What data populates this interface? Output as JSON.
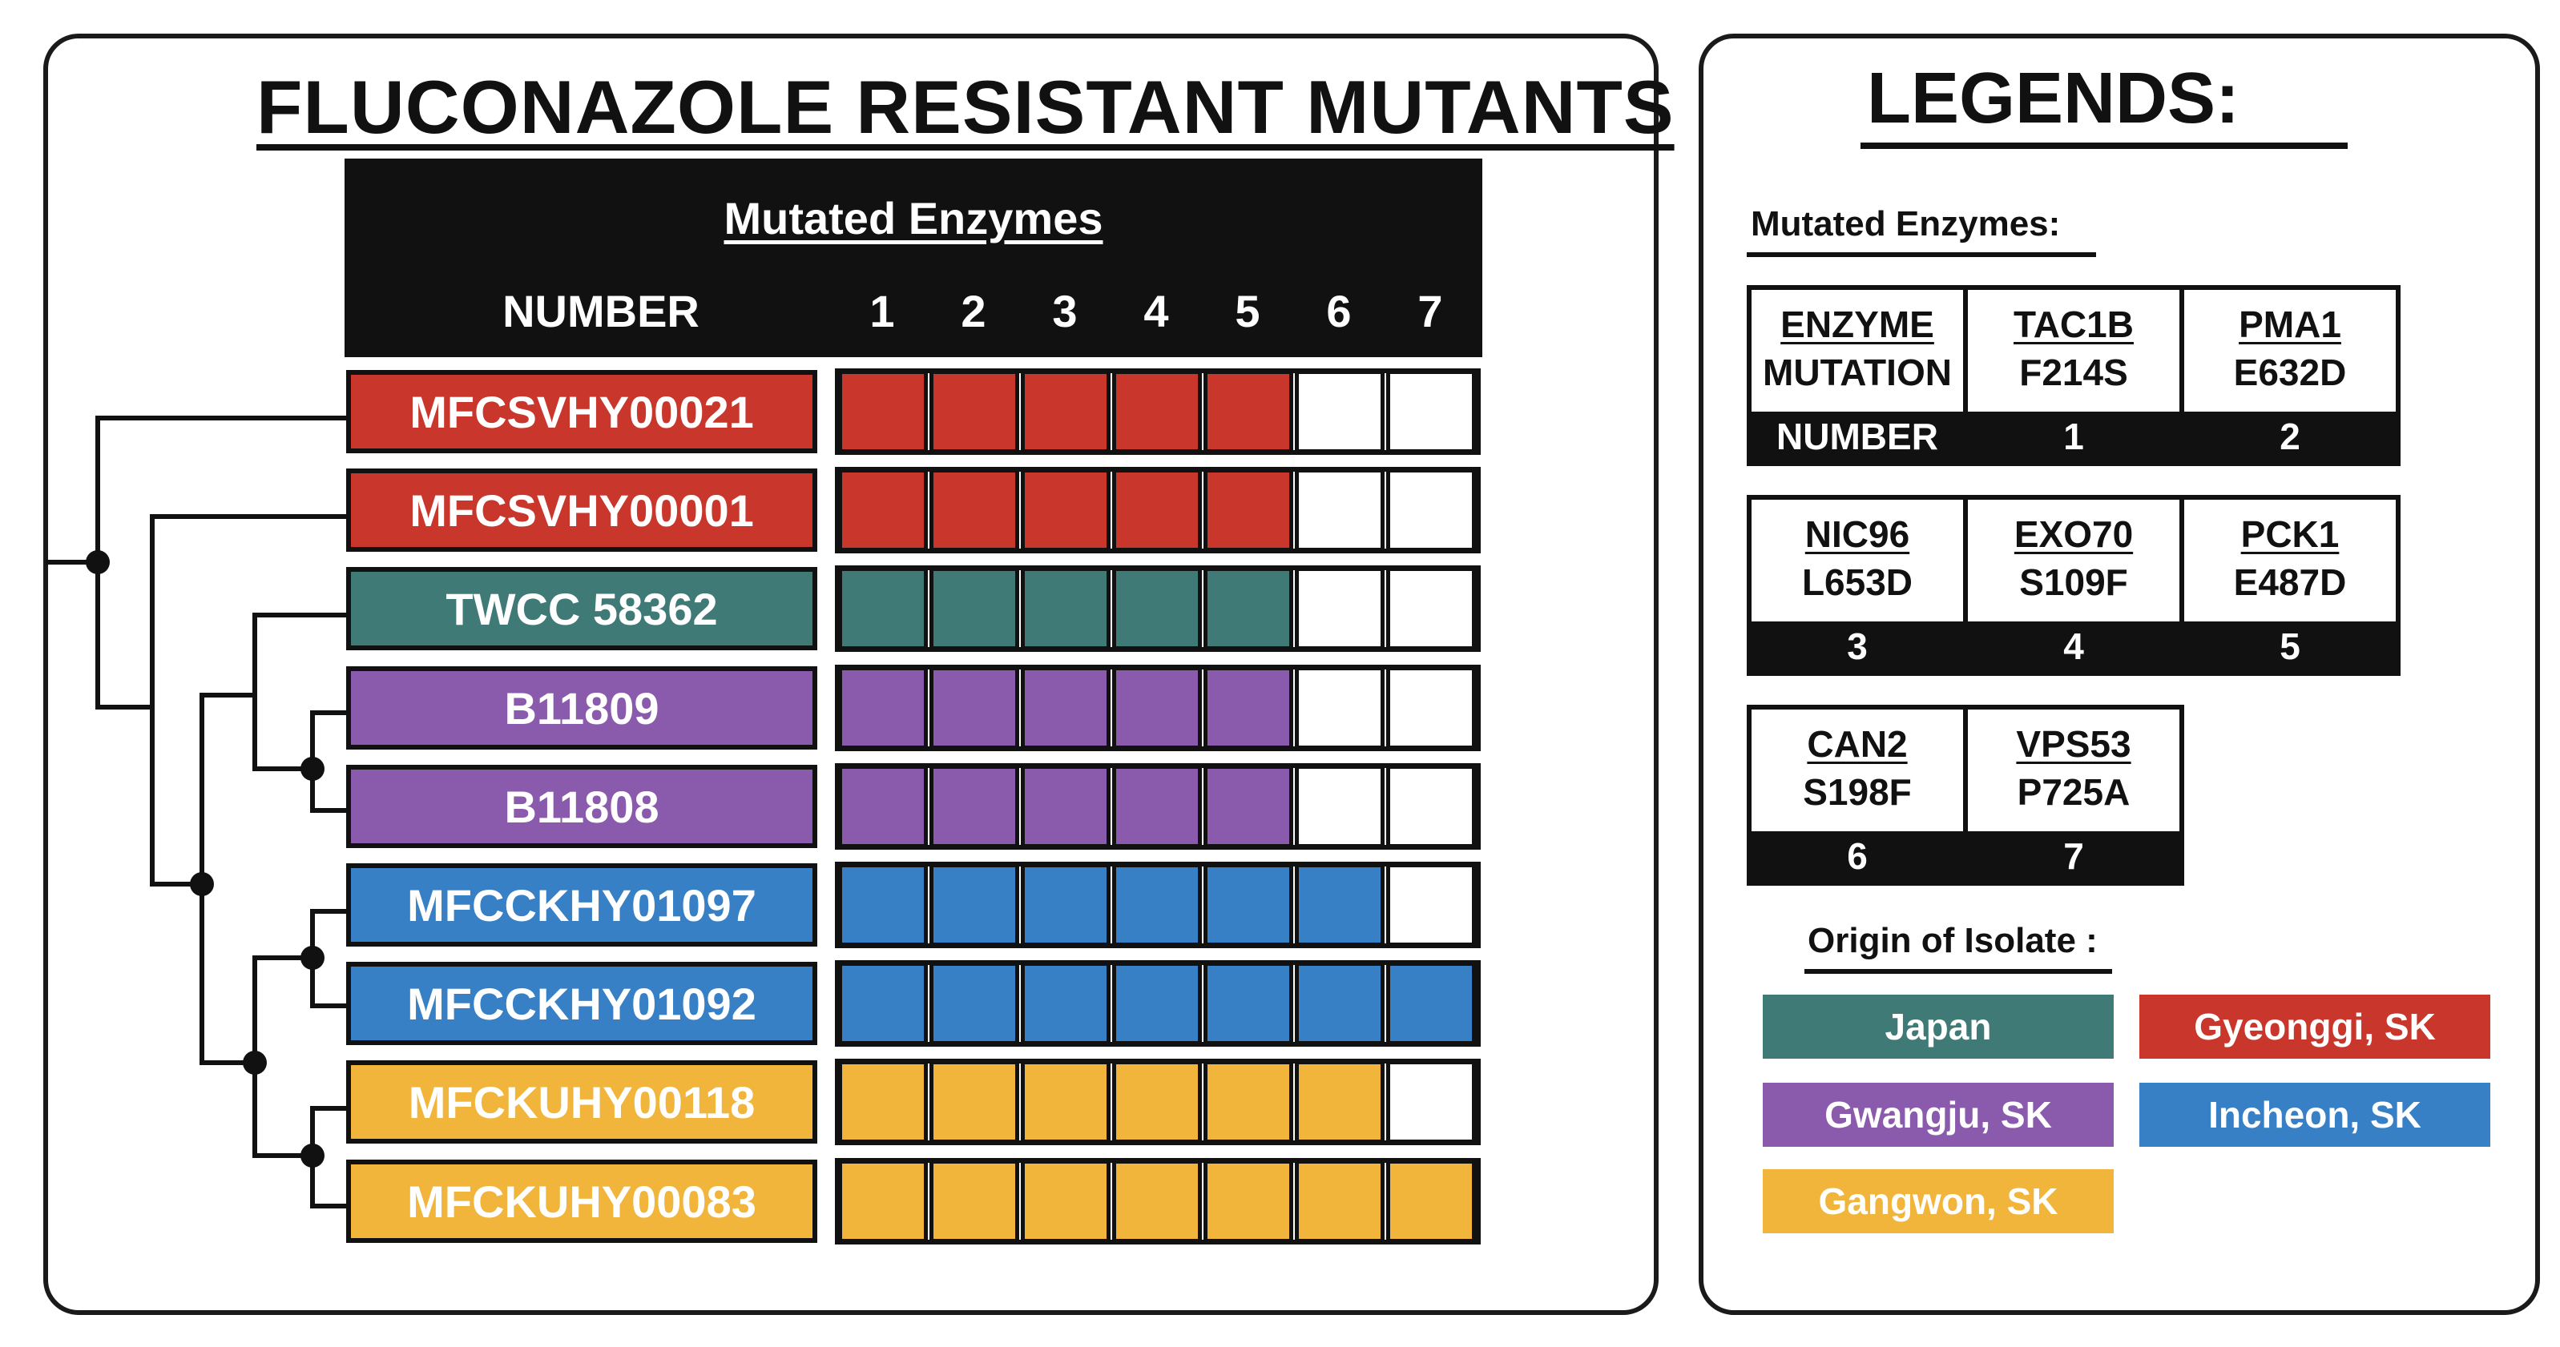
{
  "title": "FLUCONAZOLE RESISTANT MUTANTS",
  "header": {
    "subtitle": "Mutated Enzymes",
    "number_label": "NUMBER",
    "columns": [
      "1",
      "2",
      "3",
      "4",
      "5",
      "6",
      "7"
    ]
  },
  "colors": {
    "red": "#c9372c",
    "teal": "#3f7a76",
    "purple": "#8a5aac",
    "blue": "#3780c5",
    "orange": "#f2b53b",
    "empty": "#ffffff"
  },
  "strains": [
    {
      "name": "MFCSVHY00021",
      "color": "red",
      "mutations": [
        1,
        1,
        1,
        1,
        1,
        0,
        0
      ]
    },
    {
      "name": "MFCSVHY00001",
      "color": "red",
      "mutations": [
        1,
        1,
        1,
        1,
        1,
        0,
        0
      ]
    },
    {
      "name": "TWCC 58362",
      "color": "teal",
      "mutations": [
        1,
        1,
        1,
        1,
        1,
        0,
        0
      ]
    },
    {
      "name": "B11809",
      "color": "purple",
      "mutations": [
        1,
        1,
        1,
        1,
        1,
        0,
        0
      ]
    },
    {
      "name": "B11808",
      "color": "purple",
      "mutations": [
        1,
        1,
        1,
        1,
        1,
        0,
        0
      ]
    },
    {
      "name": "MFCCKHY01097",
      "color": "blue",
      "mutations": [
        1,
        1,
        1,
        1,
        1,
        1,
        0
      ]
    },
    {
      "name": "MFCCKHY01092",
      "color": "blue",
      "mutations": [
        1,
        1,
        1,
        1,
        1,
        1,
        1
      ]
    },
    {
      "name": "MFCKUHY00118",
      "color": "orange",
      "mutations": [
        1,
        1,
        1,
        1,
        1,
        1,
        0
      ]
    },
    {
      "name": "MFCKUHY00083",
      "color": "orange",
      "mutations": [
        1,
        1,
        1,
        1,
        1,
        1,
        1
      ]
    }
  ],
  "legend": {
    "title": "LEGENDS:",
    "enzymes_heading": "Mutated Enzymes:",
    "key": {
      "name": "ENZYME",
      "mutation": "MUTATION",
      "number": "NUMBER"
    },
    "enzymes": [
      {
        "name": "TAC1B",
        "mutation": "F214S",
        "number": "1"
      },
      {
        "name": "PMA1",
        "mutation": "E632D",
        "number": "2"
      },
      {
        "name": "NIC96",
        "mutation": "L653D",
        "number": "3"
      },
      {
        "name": "EXO70",
        "mutation": "S109F",
        "number": "4"
      },
      {
        "name": "PCK1",
        "mutation": "E487D",
        "number": "5"
      },
      {
        "name": "CAN2",
        "mutation": "S198F",
        "number": "6"
      },
      {
        "name": "VPS53",
        "mutation": "P725A",
        "number": "7"
      }
    ],
    "origin_heading": "Origin of Isolate :",
    "origins": [
      {
        "label": "Japan",
        "color": "teal"
      },
      {
        "label": "Gyeonggi, SK",
        "color": "red"
      },
      {
        "label": "Gwangju, SK",
        "color": "purple"
      },
      {
        "label": "Incheon, SK",
        "color": "blue"
      },
      {
        "label": "Gangwon, SK",
        "color": "orange"
      }
    ]
  }
}
